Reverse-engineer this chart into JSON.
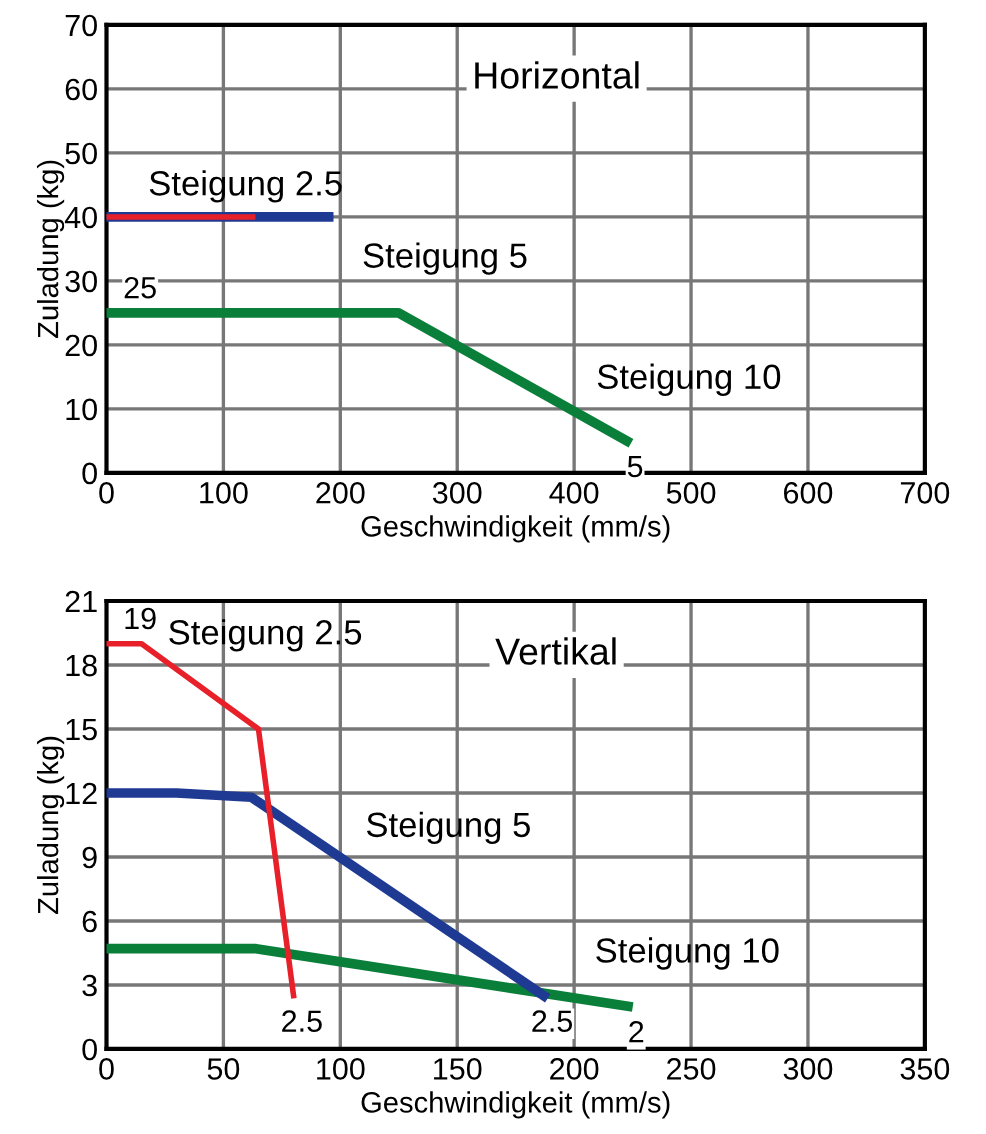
{
  "chart_data": [
    {
      "type": "line",
      "title": "Horizontal",
      "xlabel": "Geschwindigkeit (mm/s)",
      "ylabel": "Zuladung (kg)",
      "xlim": [
        0,
        700
      ],
      "xticks": [
        0,
        100,
        200,
        300,
        400,
        500,
        600,
        700
      ],
      "ylim": [
        0,
        70
      ],
      "yticks": [
        0,
        10,
        20,
        30,
        40,
        50,
        60,
        70
      ],
      "grid": true,
      "marker": "none",
      "line_style": "solid",
      "series": [
        {
          "name": "Steigung 2.5",
          "color": "#e8202a",
          "x": [
            0,
            125
          ],
          "values": [
            40,
            40
          ]
        },
        {
          "name": "Steigung 5",
          "color": "#1f3a93",
          "x": [
            0,
            190
          ],
          "values": [
            40,
            40
          ]
        },
        {
          "name": "Steigung 10",
          "color": "#0a7f3a",
          "x": [
            0,
            250,
            445
          ],
          "values": [
            25,
            25,
            5
          ]
        }
      ],
      "annotations": [
        {
          "text": "25",
          "x": 0,
          "y": 25
        },
        {
          "text": "5",
          "x": 445,
          "y": 5
        }
      ]
    },
    {
      "type": "line",
      "title": "Vertikal",
      "xlabel": "Geschwindigkeit (mm/s)",
      "ylabel": "Zuladung (kg)",
      "xlim": [
        0,
        350
      ],
      "xticks": [
        0,
        50,
        100,
        150,
        200,
        250,
        300,
        350
      ],
      "ylim": [
        0,
        21
      ],
      "yticks": [
        0,
        3,
        6,
        9,
        12,
        15,
        18,
        21
      ],
      "grid": true,
      "marker": "none",
      "line_style": "solid",
      "series": [
        {
          "name": "Steigung 2.5",
          "color": "#e8202a",
          "x": [
            0,
            15,
            65,
            80
          ],
          "values": [
            19,
            19,
            15,
            2.5
          ]
        },
        {
          "name": "Steigung 5",
          "color": "#1f3a93",
          "x": [
            0,
            30,
            62,
            187
          ],
          "values": [
            12,
            12,
            11.8,
            2.5
          ]
        },
        {
          "name": "Steigung 10",
          "color": "#0a7f3a",
          "x": [
            0,
            64,
            223
          ],
          "values": [
            4.7,
            4.7,
            2
          ]
        }
      ],
      "annotations": [
        {
          "text": "19",
          "x": 0,
          "y": 19
        },
        {
          "text": "2.5",
          "x": 80,
          "y": 2.5
        },
        {
          "text": "2.5",
          "x": 187,
          "y": 2.5
        },
        {
          "text": "2",
          "x": 223,
          "y": 2
        }
      ]
    }
  ]
}
